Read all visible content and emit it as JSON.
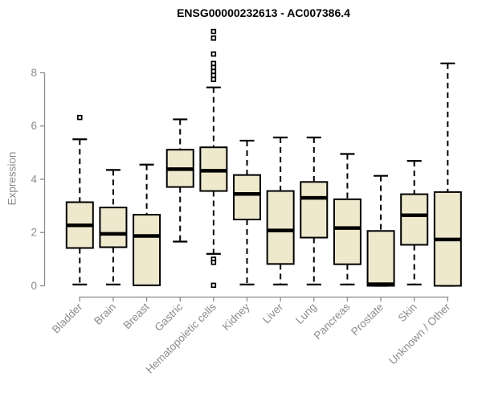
{
  "chart_data": {
    "type": "boxplot",
    "title": "ENSG00000232613 - AC007386.4",
    "ylabel": "Expression",
    "xlabel": "",
    "ylim": [
      0,
      8
    ],
    "yticks": [
      0,
      2,
      4,
      6,
      8
    ],
    "grid": false,
    "legend": "none",
    "categories": [
      "Bladder",
      "Brain",
      "Breast",
      "Gastric",
      "Hematopoietic cells",
      "Kidney",
      "Liver",
      "Lung",
      "Pancreas",
      "Prostate",
      "Skin",
      "Unknown / Other"
    ],
    "series": [
      {
        "name": "Bladder",
        "whisker_low": 0.05,
        "q1": 1.42,
        "median": 2.27,
        "q3": 3.14,
        "whisker_high": 5.5,
        "outliers": [
          6.32
        ]
      },
      {
        "name": "Brain",
        "whisker_low": 0.05,
        "q1": 1.45,
        "median": 1.95,
        "q3": 2.94,
        "whisker_high": 4.35,
        "outliers": []
      },
      {
        "name": "Breast",
        "whisker_low": 0.02,
        "q1": 0.02,
        "median": 1.87,
        "q3": 2.67,
        "whisker_high": 4.55,
        "outliers": []
      },
      {
        "name": "Gastric",
        "whisker_low": 1.66,
        "q1": 3.71,
        "median": 4.38,
        "q3": 5.11,
        "whisker_high": 6.25,
        "outliers": []
      },
      {
        "name": "Hematopoietic cells",
        "whisker_low": 1.2,
        "q1": 3.56,
        "median": 4.32,
        "q3": 5.2,
        "whisker_high": 7.45,
        "outliers": [
          9.55,
          9.3,
          8.7,
          8.35,
          8.2,
          8.05,
          7.9,
          7.75,
          1.0,
          0.88,
          0.02
        ]
      },
      {
        "name": "Kidney",
        "whisker_low": 0.05,
        "q1": 2.49,
        "median": 3.45,
        "q3": 4.16,
        "whisker_high": 5.45,
        "outliers": []
      },
      {
        "name": "Liver",
        "whisker_low": 0.05,
        "q1": 0.82,
        "median": 2.08,
        "q3": 3.56,
        "whisker_high": 5.57,
        "outliers": []
      },
      {
        "name": "Lung",
        "whisker_low": 0.05,
        "q1": 1.81,
        "median": 3.3,
        "q3": 3.9,
        "whisker_high": 5.57,
        "outliers": []
      },
      {
        "name": "Pancreas",
        "whisker_low": 0.05,
        "q1": 0.81,
        "median": 2.17,
        "q3": 3.25,
        "whisker_high": 4.95,
        "outliers": []
      },
      {
        "name": "Prostate",
        "whisker_low": 0.0,
        "q1": 0.0,
        "median": 0.06,
        "q3": 2.06,
        "whisker_high": 4.13,
        "outliers": []
      },
      {
        "name": "Skin",
        "whisker_low": 0.05,
        "q1": 1.54,
        "median": 2.65,
        "q3": 3.44,
        "whisker_high": 4.69,
        "outliers": []
      },
      {
        "name": "Unknown / Other",
        "whisker_low": 0.0,
        "q1": 0.0,
        "median": 1.74,
        "q3": 3.52,
        "whisker_high": 8.35,
        "outliers": []
      }
    ],
    "colors": {
      "box_fill": "#EEE8CD",
      "box_stroke": "#000000",
      "median": "#000000",
      "whisker": "#000000",
      "outlier_stroke": "#000000",
      "outlier_fill": "#ffffff",
      "axis": "#8c8c8c",
      "tick_label": "#8c8c8c",
      "title": "#000000",
      "background": "#ffffff"
    }
  }
}
